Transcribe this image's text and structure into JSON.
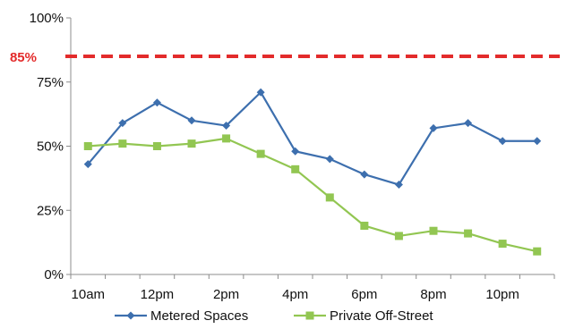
{
  "chart_data": {
    "type": "line",
    "title": "",
    "xlabel": "",
    "ylabel": "",
    "x_tick_labels": [
      "10am",
      "12pm",
      "2pm",
      "4pm",
      "6pm",
      "8pm",
      "10pm"
    ],
    "y_tick_labels": [
      "0%",
      "25%",
      "50%",
      "75%",
      "100%"
    ],
    "ylim": [
      0,
      100
    ],
    "grid": false,
    "legend_position": "bottom",
    "reference_line": {
      "value": 85,
      "label": "85%",
      "color": "#e32b2b",
      "style": "dashed"
    },
    "categories": [
      "10am",
      "11am",
      "12pm",
      "1pm",
      "2pm",
      "3pm",
      "4pm",
      "5pm",
      "6pm",
      "7pm",
      "8pm",
      "9pm",
      "10pm",
      "11pm"
    ],
    "series": [
      {
        "name": "Metered Spaces",
        "color": "#3d6fae",
        "marker": "diamond",
        "values": [
          43,
          59,
          67,
          60,
          58,
          71,
          48,
          45,
          39,
          35,
          57,
          59,
          52,
          52
        ]
      },
      {
        "name": "Private Off-Street",
        "color": "#92c652",
        "marker": "square",
        "values": [
          50,
          51,
          50,
          51,
          53,
          47,
          41,
          30,
          19,
          15,
          17,
          16,
          12,
          9
        ]
      }
    ]
  }
}
